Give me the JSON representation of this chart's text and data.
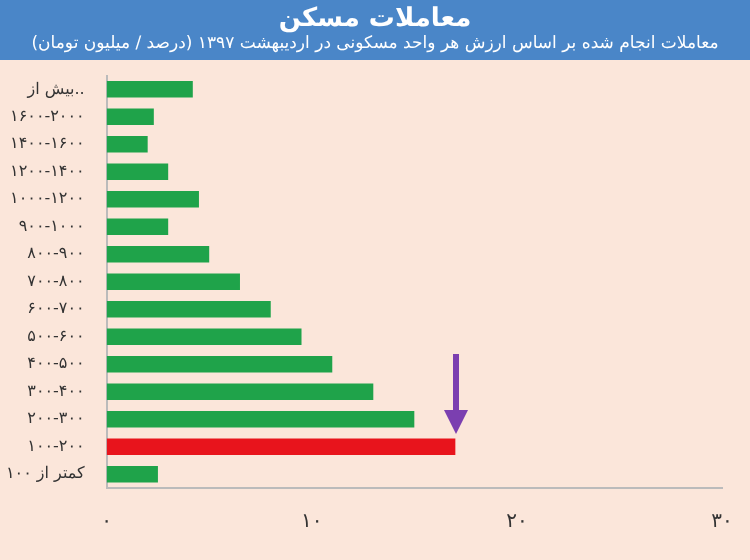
{
  "chart_data": {
    "type": "bar",
    "orientation": "horizontal",
    "title": "معاملات مسکن",
    "subtitle": "معاملات انجام شده بر اساس ارزش هر واحد مسکونی در اردیبهشت ۱۳۹۷ (درصد / میلیون تومان)",
    "categories": [
      "بیش از..",
      "۱۶۰۰-۲۰۰۰",
      "۱۴۰۰-۱۶۰۰",
      "۱۲۰۰-۱۴۰۰",
      "۱۰۰۰-۱۲۰۰",
      "۹۰۰-۱۰۰۰",
      "۸۰۰-۹۰۰",
      "۷۰۰-۸۰۰",
      "۶۰۰-۷۰۰",
      "۵۰۰-۶۰۰",
      "۴۰۰-۵۰۰",
      "۳۰۰-۴۰۰",
      "۲۰۰-۳۰۰",
      "۱۰۰-۲۰۰",
      "کمتر از ۱۰۰"
    ],
    "values": [
      4.2,
      2.3,
      2,
      3,
      4.5,
      3,
      5,
      6.5,
      8,
      9.5,
      11,
      13,
      15,
      17,
      2.5
    ],
    "colors": [
      "#1fa34a",
      "#1fa34a",
      "#1fa34a",
      "#1fa34a",
      "#1fa34a",
      "#1fa34a",
      "#1fa34a",
      "#1fa34a",
      "#1fa34a",
      "#1fa34a",
      "#1fa34a",
      "#1fa34a",
      "#1fa34a",
      "#e8141c",
      "#1fa34a"
    ],
    "xlim": [
      0,
      30
    ],
    "xticks": [
      {
        "value": 0,
        "label": "۰"
      },
      {
        "value": 10,
        "label": "۱۰"
      },
      {
        "value": 20,
        "label": "۲۰"
      },
      {
        "value": 30,
        "label": "۳۰"
      }
    ],
    "grid": false,
    "legend": false
  }
}
